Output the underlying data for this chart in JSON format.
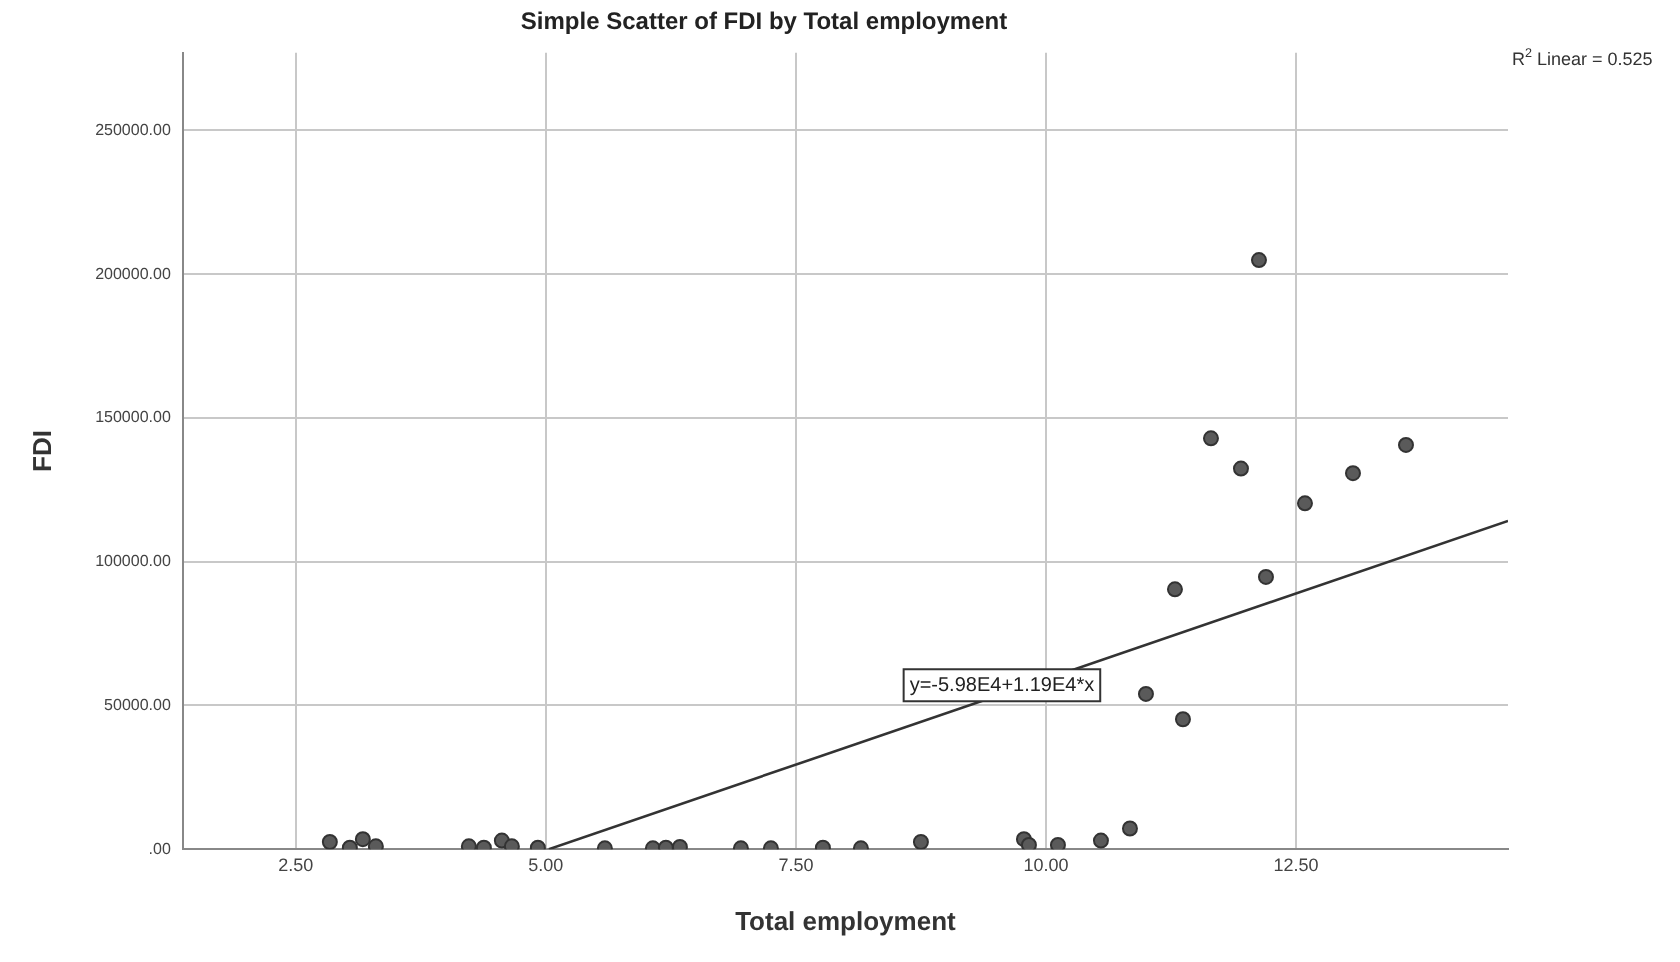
{
  "chart_data": {
    "type": "scatter",
    "title": "Simple Scatter of FDI by Total employment",
    "xlabel": "Total employment",
    "ylabel": "FDI",
    "xlim": [
      1.37,
      14.62
    ],
    "ylim": [
      0,
      277000
    ],
    "xticks": [
      {
        "value": 2.5,
        "label": "2.50"
      },
      {
        "value": 5,
        "label": "5.00"
      },
      {
        "value": 7.5,
        "label": "7.50"
      },
      {
        "value": 10,
        "label": "10.00"
      },
      {
        "value": 12.5,
        "label": "12.50"
      }
    ],
    "yticks": [
      {
        "value": 0,
        "label": ".00"
      },
      {
        "value": 50000,
        "label": "50000.00"
      },
      {
        "value": 100000,
        "label": "100000.00"
      },
      {
        "value": 150000,
        "label": "150000.00"
      },
      {
        "value": 200000,
        "label": "200000.00"
      },
      {
        "value": 250000,
        "label": "250000.00"
      }
    ],
    "grid": true,
    "legend": false,
    "marker": "circle",
    "series": [
      {
        "type": "scatter",
        "color": "#5a5a5a",
        "x": [
          2.84,
          3.04,
          3.17,
          3.3,
          4.23,
          4.38,
          4.56,
          4.66,
          4.92,
          5.59,
          6.07,
          6.2,
          6.34,
          6.95,
          7.25,
          7.77,
          8.15,
          8.75,
          9.78,
          9.83,
          10.12,
          10.55,
          10.84,
          11.0,
          11.29,
          11.37,
          11.65,
          11.95,
          12.13,
          12.2,
          12.59,
          13.07,
          13.6
        ],
        "values": [
          2500,
          500,
          3500,
          1000,
          1000,
          500,
          3000,
          1000,
          500,
          300,
          300,
          500,
          800,
          300,
          300,
          500,
          300,
          2500,
          3500,
          1500,
          1500,
          3000,
          7200,
          54000,
          90400,
          45200,
          142900,
          132400,
          204900,
          94700,
          120300,
          130800,
          140600
        ]
      },
      {
        "type": "line",
        "color": "#333333",
        "line_style": "solid",
        "marker": "none",
        "x": [
          5.03,
          14.62
        ],
        "values": [
          0,
          114200
        ]
      }
    ],
    "annotations": [
      {
        "text": "y=-5.98E4+1.19E4*x",
        "x": 9.56,
        "y": 57000
      },
      "R$^{2}$ Linear = 0.525"
    ]
  }
}
